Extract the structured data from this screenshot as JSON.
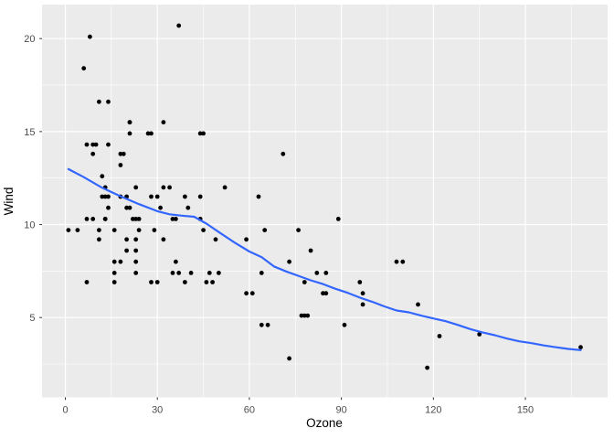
{
  "chart_data": {
    "type": "scatter",
    "title": "",
    "xlabel": "Ozone",
    "ylabel": "Wind",
    "x_ticks": [
      0,
      30,
      60,
      90,
      120,
      150
    ],
    "y_ticks": [
      5,
      10,
      15,
      20
    ],
    "x_minor": [
      15,
      45,
      75,
      105,
      135,
      165
    ],
    "y_minor": [
      2.5,
      7.5,
      12.5,
      17.5
    ],
    "xlim": [
      -7.6,
      176.8
    ],
    "ylim": [
      0.71,
      21.83
    ],
    "grid": true,
    "legend": "none",
    "points": [
      [
        41,
        7.4
      ],
      [
        36,
        8
      ],
      [
        12,
        12.6
      ],
      [
        18,
        11.5
      ],
      [
        28,
        14.9
      ],
      [
        23,
        8.6
      ],
      [
        19,
        13.8
      ],
      [
        8,
        20.1
      ],
      [
        7,
        6.9
      ],
      [
        16,
        9.7
      ],
      [
        11,
        9.2
      ],
      [
        14,
        10.9
      ],
      [
        18,
        13.2
      ],
      [
        14,
        11.5
      ],
      [
        34,
        12
      ],
      [
        6,
        18.4
      ],
      [
        30,
        11.5
      ],
      [
        11,
        9.7
      ],
      [
        1,
        9.7
      ],
      [
        11,
        16.6
      ],
      [
        4,
        9.7
      ],
      [
        32,
        12
      ],
      [
        23,
        12
      ],
      [
        45,
        14.9
      ],
      [
        115,
        5.7
      ],
      [
        37,
        7.4
      ],
      [
        29,
        9.7
      ],
      [
        71,
        13.8
      ],
      [
        39,
        11.5
      ],
      [
        23,
        8
      ],
      [
        21,
        14.9
      ],
      [
        37,
        20.7
      ],
      [
        20,
        9.2
      ],
      [
        12,
        11.5
      ],
      [
        13,
        10.3
      ],
      [
        135,
        4.1
      ],
      [
        49,
        9.2
      ],
      [
        32,
        9.2
      ],
      [
        64,
        4.6
      ],
      [
        40,
        10.9
      ],
      [
        77,
        5.1
      ],
      [
        97,
        6.3
      ],
      [
        97,
        5.7
      ],
      [
        85,
        7.4
      ],
      [
        10,
        14.3
      ],
      [
        27,
        14.9
      ],
      [
        7,
        14.3
      ],
      [
        48,
        6.9
      ],
      [
        35,
        10.3
      ],
      [
        61,
        6.3
      ],
      [
        79,
        5.1
      ],
      [
        63,
        11.5
      ],
      [
        16,
        6.9
      ],
      [
        80,
        8.6
      ],
      [
        108,
        8
      ],
      [
        20,
        8.6
      ],
      [
        52,
        12
      ],
      [
        82,
        7.4
      ],
      [
        50,
        7.4
      ],
      [
        64,
        7.4
      ],
      [
        59,
        9.2
      ],
      [
        39,
        6.9
      ],
      [
        9,
        13.8
      ],
      [
        16,
        7.4
      ],
      [
        78,
        6.9
      ],
      [
        35,
        7.4
      ],
      [
        66,
        4.6
      ],
      [
        122,
        4
      ],
      [
        89,
        10.3
      ],
      [
        110,
        8
      ],
      [
        44,
        11.5
      ],
      [
        28,
        11.5
      ],
      [
        65,
        9.7
      ],
      [
        22,
        10.3
      ],
      [
        59,
        6.3
      ],
      [
        23,
        7.4
      ],
      [
        31,
        10.9
      ],
      [
        44,
        10.3
      ],
      [
        21,
        15.5
      ],
      [
        9,
        14.3
      ],
      [
        45,
        9.7
      ],
      [
        168,
        3.4
      ],
      [
        73,
        8
      ],
      [
        76,
        9.7
      ],
      [
        118,
        2.3
      ],
      [
        84,
        6.3
      ],
      [
        85,
        6.3
      ],
      [
        96,
        6.9
      ],
      [
        78,
        5.1
      ],
      [
        73,
        2.8
      ],
      [
        91,
        4.6
      ],
      [
        47,
        7.4
      ],
      [
        32,
        15.5
      ],
      [
        20,
        10.9
      ],
      [
        23,
        10.3
      ],
      [
        21,
        10.9
      ],
      [
        24,
        9.7
      ],
      [
        44,
        14.9
      ],
      [
        21,
        15.5
      ],
      [
        28,
        6.9
      ],
      [
        9,
        10.3
      ],
      [
        13,
        11.5
      ],
      [
        46,
        6.9
      ],
      [
        18,
        13.8
      ],
      [
        13,
        10.3
      ],
      [
        24,
        10.3
      ],
      [
        16,
        8
      ],
      [
        13,
        12
      ],
      [
        23,
        9.2
      ],
      [
        36,
        10.3
      ],
      [
        7,
        10.3
      ],
      [
        14,
        16.6
      ],
      [
        30,
        6.9
      ],
      [
        14,
        14.3
      ],
      [
        18,
        8
      ],
      [
        20,
        11.5
      ]
    ],
    "smooth_line": [
      [
        1,
        12.98
      ],
      [
        6,
        12.55
      ],
      [
        12,
        11.98
      ],
      [
        18,
        11.52
      ],
      [
        24,
        11.1
      ],
      [
        30,
        10.72
      ],
      [
        34,
        10.55
      ],
      [
        38,
        10.48
      ],
      [
        42,
        10.42
      ],
      [
        46,
        10.05
      ],
      [
        50,
        9.6
      ],
      [
        55,
        9.05
      ],
      [
        60,
        8.55
      ],
      [
        64,
        8.25
      ],
      [
        68,
        7.75
      ],
      [
        72,
        7.48
      ],
      [
        76,
        7.24
      ],
      [
        80,
        7.0
      ],
      [
        84,
        6.8
      ],
      [
        88,
        6.55
      ],
      [
        92,
        6.33
      ],
      [
        96,
        6.07
      ],
      [
        100,
        5.85
      ],
      [
        104,
        5.6
      ],
      [
        108,
        5.38
      ],
      [
        112,
        5.28
      ],
      [
        116,
        5.1
      ],
      [
        120,
        4.95
      ],
      [
        124,
        4.8
      ],
      [
        128,
        4.6
      ],
      [
        132,
        4.38
      ],
      [
        136,
        4.2
      ],
      [
        140,
        4.05
      ],
      [
        144,
        3.87
      ],
      [
        148,
        3.72
      ],
      [
        152,
        3.62
      ],
      [
        156,
        3.5
      ],
      [
        160,
        3.4
      ],
      [
        164,
        3.31
      ],
      [
        168,
        3.25
      ]
    ],
    "colors": {
      "outer_bg": "#FFFFFF",
      "panel_bg": "#EBEBEB",
      "grid": "#FFFFFF",
      "point": "#000000",
      "smooth": "#3366FF",
      "tick_mark": "#333333",
      "tick_text": "#4D4D4D",
      "axis_title": "#000000"
    }
  }
}
